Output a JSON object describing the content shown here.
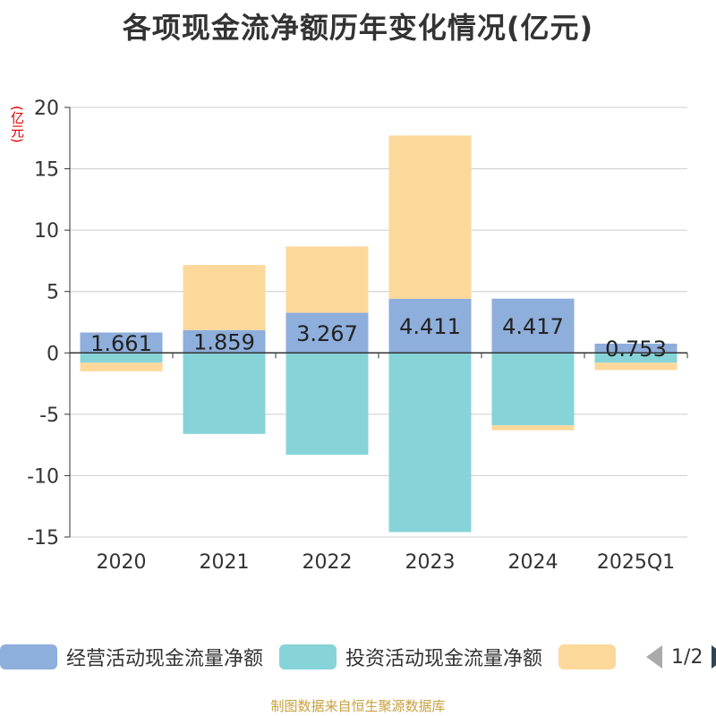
{
  "title": "各项现金流净额历年变化情况(亿元)",
  "unit_label": "(亿元)",
  "footer": "制图数据来自恒生聚源数据库",
  "colors": {
    "operating": "#8eaedb",
    "investing": "#86d4d8",
    "financing": "#fdd89b",
    "grid": "#cccccc",
    "axis": "#333333"
  },
  "legend": {
    "items": [
      {
        "label": "经营活动现金流量净额"
      },
      {
        "label": "投资活动现金流量净额"
      },
      {
        "label": ""
      }
    ],
    "page_indicator": "1/2"
  },
  "chart_data": {
    "type": "bar",
    "stacked": true,
    "title": "各项现金流净额历年变化情况(亿元)",
    "ylabel": "(亿元)",
    "xlabel": "",
    "ylim": [
      -15,
      20
    ],
    "yticks": [
      20,
      15,
      10,
      5,
      0,
      -5,
      -10,
      -15
    ],
    "categories": [
      "2020",
      "2021",
      "2022",
      "2023",
      "2024",
      "2025Q1"
    ],
    "series": [
      {
        "name": "经营活动现金流量净额",
        "values": [
          1.661,
          1.859,
          3.267,
          4.411,
          4.417,
          0.753
        ],
        "data_labels": [
          "1.661",
          "1.859",
          "3.267",
          "4.411",
          "4.417",
          "0.753"
        ]
      },
      {
        "name": "投资活动现金流量净额",
        "values": [
          -0.8,
          -6.6,
          -8.3,
          -14.6,
          -5.9,
          -0.8
        ]
      },
      {
        "name": "",
        "values": [
          -0.7,
          5.3,
          5.4,
          13.3,
          -0.4,
          -0.6
        ]
      }
    ]
  }
}
